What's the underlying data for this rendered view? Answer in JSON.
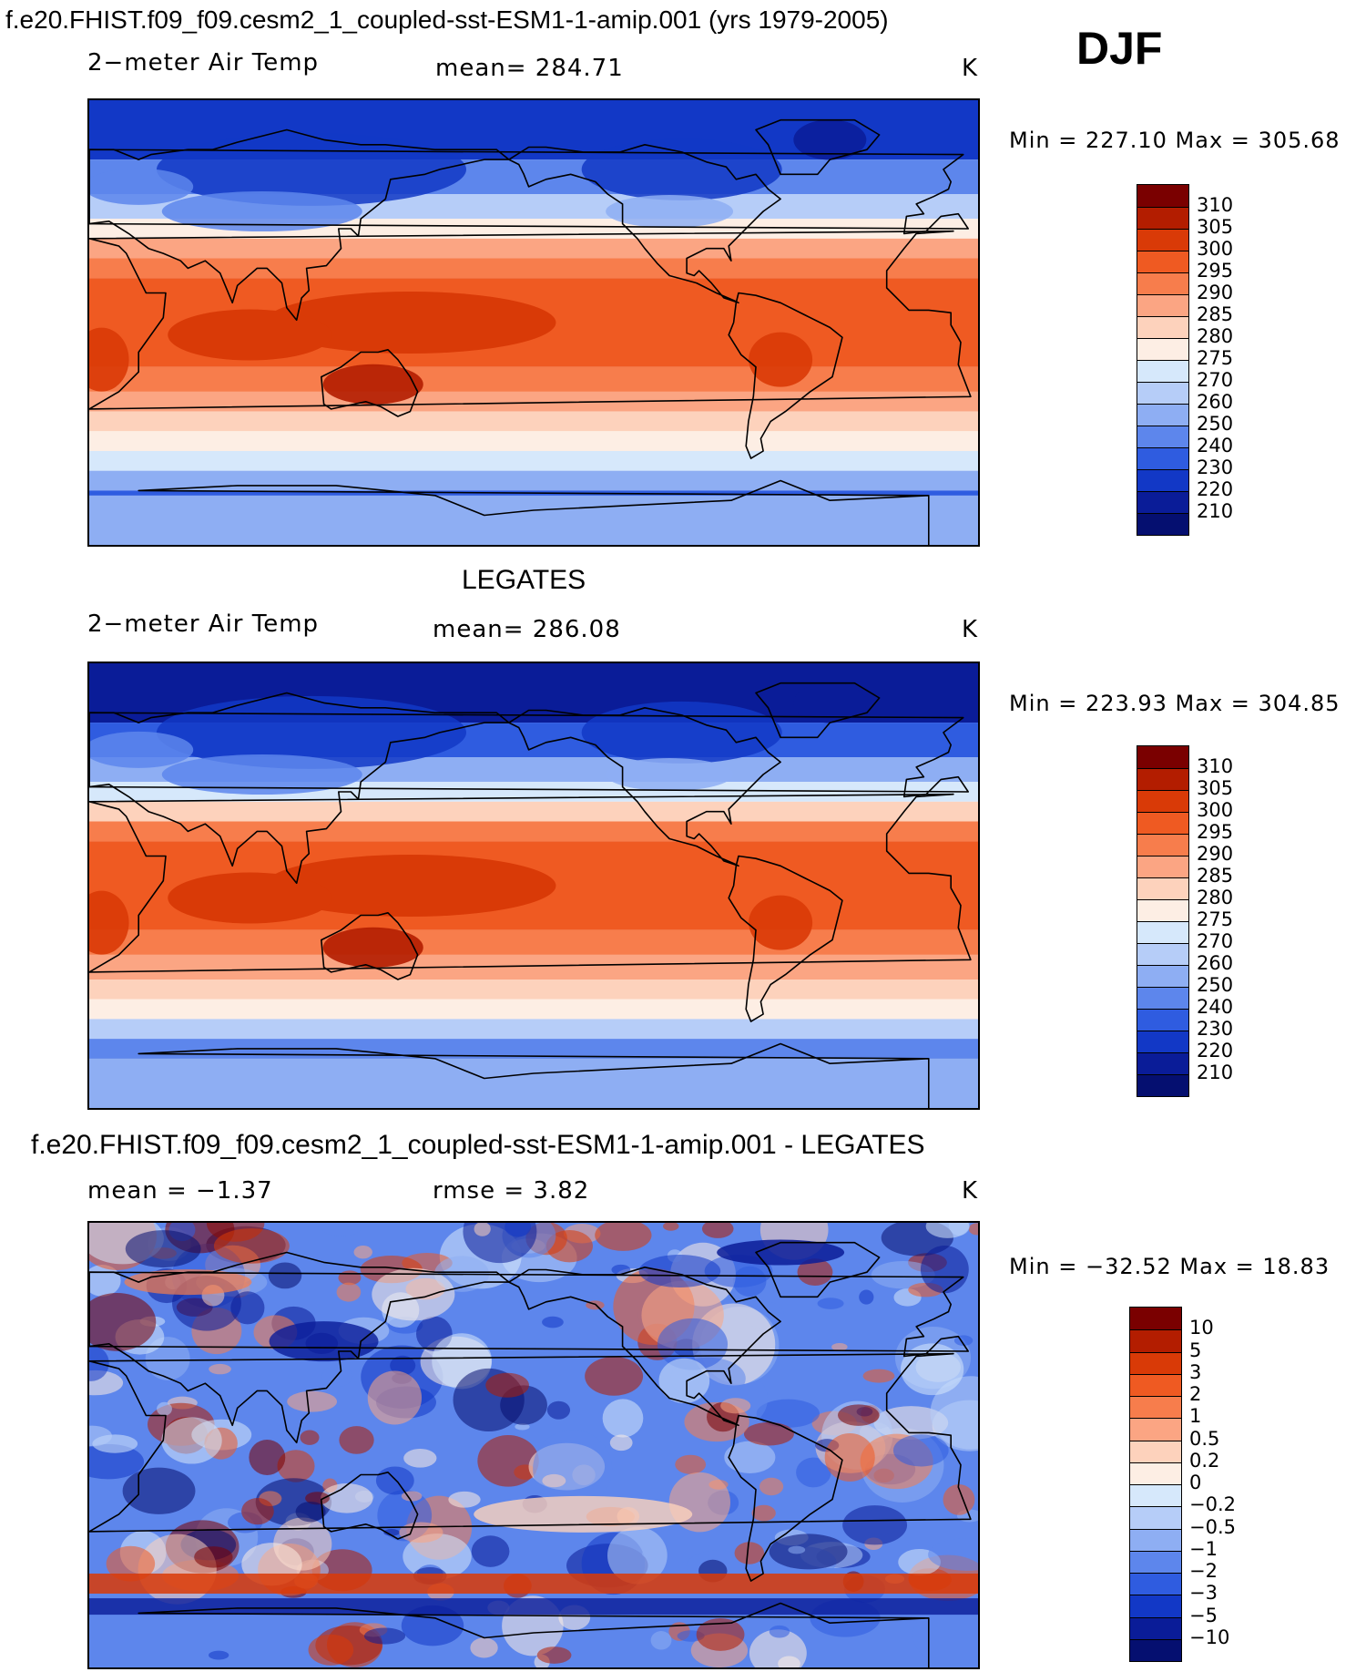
{
  "header": {
    "title": "f.e20.FHIST.f09_f09.cesm2_1_coupled-sst-ESM1-1-amip.001 (yrs 1979-2005)",
    "season": "DJF"
  },
  "panels": [
    {
      "heading": "",
      "variable": "2−meter Air Temp",
      "stat_text": "mean= 284.71",
      "units": "K",
      "minmax": "Min = 227.10 Max = 305.68",
      "cbar_labels": [
        "310",
        "305",
        "300",
        "295",
        "290",
        "285",
        "280",
        "275",
        "270",
        "260",
        "250",
        "240",
        "230",
        "220",
        "210"
      ],
      "cbar_colors": [
        "#7a0000",
        "#b31d00",
        "#d93a07",
        "#ef5a22",
        "#f77d4c",
        "#fba583",
        "#fdd2bc",
        "#fdeee4",
        "#d6e8fb",
        "#b6cdf8",
        "#8eaef3",
        "#5d86ec",
        "#2f5ce0",
        "#1238c6",
        "#0a1c98",
        "#050f70"
      ],
      "field": "model"
    },
    {
      "heading": "LEGATES",
      "variable": "2−meter Air Temp",
      "stat_text": "mean= 286.08",
      "units": "K",
      "minmax": "Min = 223.93 Max = 304.85",
      "cbar_labels": [
        "310",
        "305",
        "300",
        "295",
        "290",
        "285",
        "280",
        "275",
        "270",
        "260",
        "250",
        "240",
        "230",
        "220",
        "210"
      ],
      "cbar_colors": [
        "#7a0000",
        "#b31d00",
        "#d93a07",
        "#ef5a22",
        "#f77d4c",
        "#fba583",
        "#fdd2bc",
        "#fdeee4",
        "#d6e8fb",
        "#b6cdf8",
        "#8eaef3",
        "#5d86ec",
        "#2f5ce0",
        "#1238c6",
        "#0a1c98",
        "#050f70"
      ],
      "field": "obs"
    },
    {
      "heading": "f.e20.FHIST.f09_f09.cesm2_1_coupled-sst-ESM1-1-amip.001 - LEGATES",
      "variable": "mean =   −1.37",
      "stat_text": "rmse =    3.82",
      "units": "K",
      "minmax": "Min = −32.52 Max =   18.83",
      "cbar_labels": [
        "10",
        "5",
        "3",
        "2",
        "1",
        "0.5",
        "0.2",
        "0",
        "−0.2",
        "−0.5",
        "−1",
        "−2",
        "−3",
        "−5",
        "−10"
      ],
      "cbar_colors": [
        "#7a0000",
        "#b31d00",
        "#d93a07",
        "#ef5a22",
        "#f77d4c",
        "#fba583",
        "#fdd2bc",
        "#fdeee4",
        "#d6e8fb",
        "#b6cdf8",
        "#8eaef3",
        "#5d86ec",
        "#2f5ce0",
        "#1238c6",
        "#0a1c98",
        "#050f70"
      ],
      "field": "diff"
    }
  ]
}
